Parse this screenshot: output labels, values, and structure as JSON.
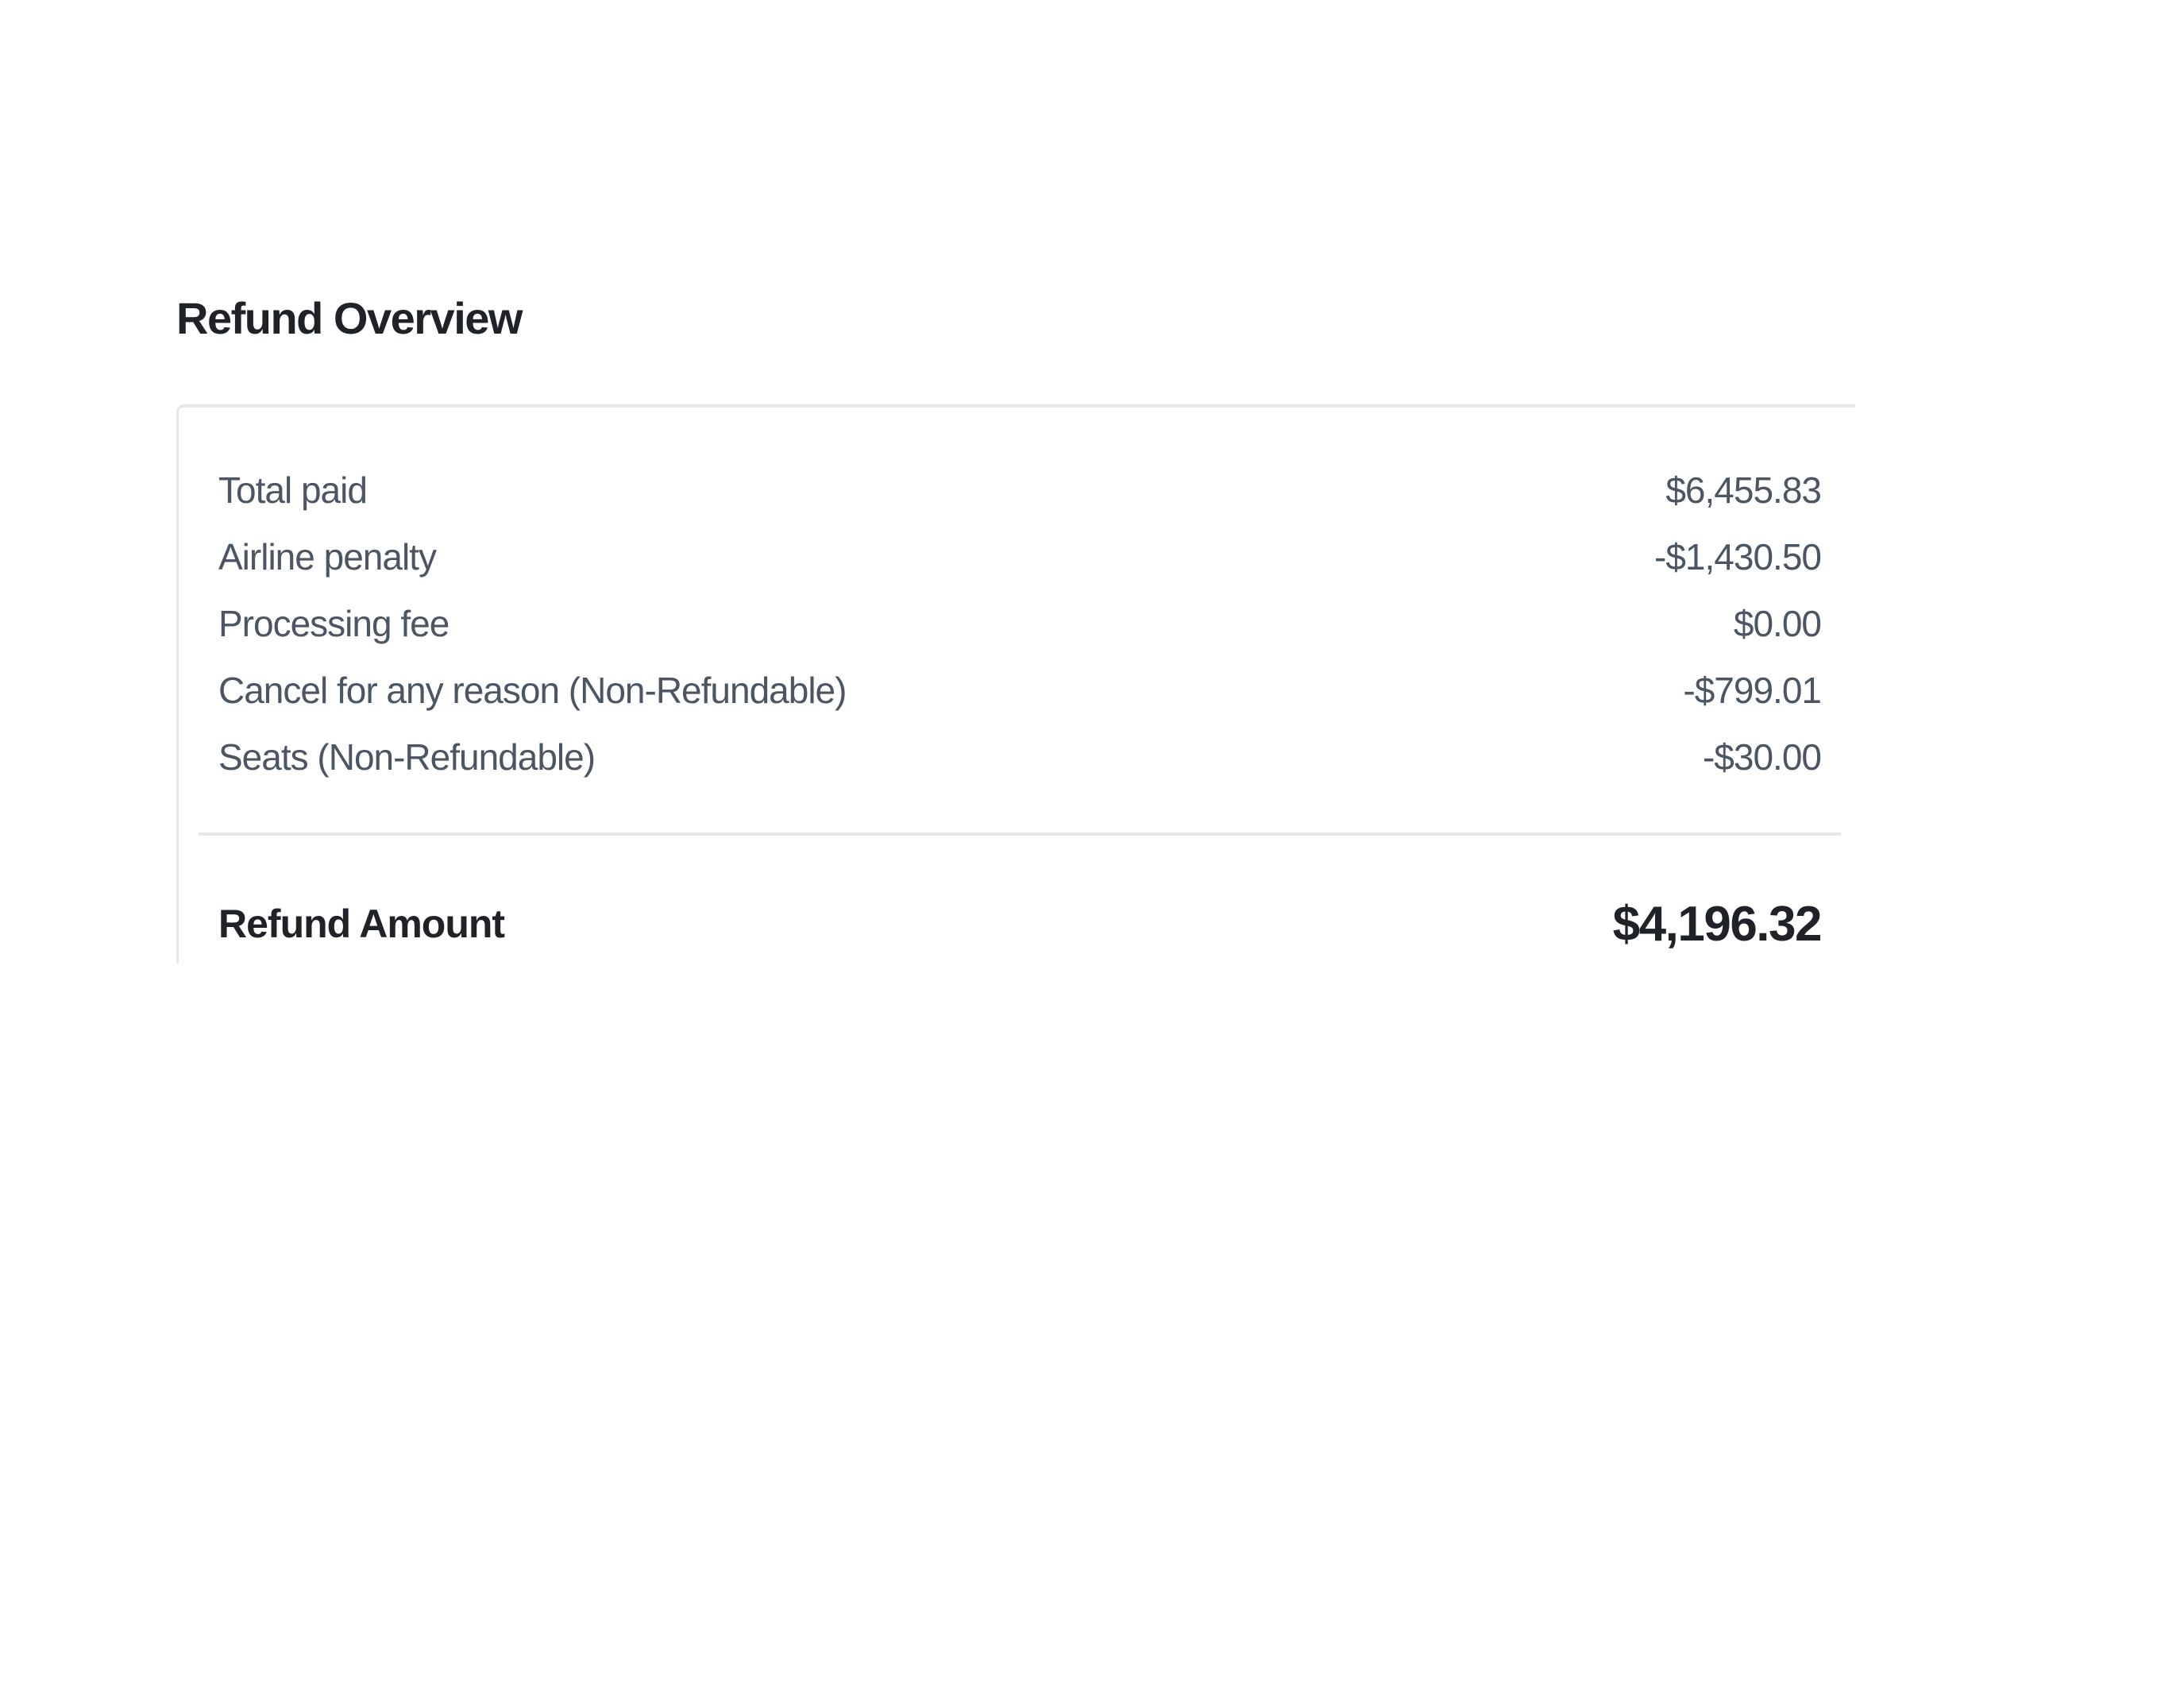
{
  "title": "Refund Overview",
  "items": [
    {
      "label": "Total paid",
      "value": "$6,455.83"
    },
    {
      "label": "Airline penalty",
      "value": "-$1,430.50"
    },
    {
      "label": "Processing fee",
      "value": "$0.00"
    },
    {
      "label": "Cancel for any reason (Non-Refundable)",
      "value": "-$799.01"
    },
    {
      "label": "Seats (Non-Refundable)",
      "value": "-$30.00"
    }
  ],
  "total": {
    "label": "Refund Amount",
    "value": "$4,196.32"
  }
}
